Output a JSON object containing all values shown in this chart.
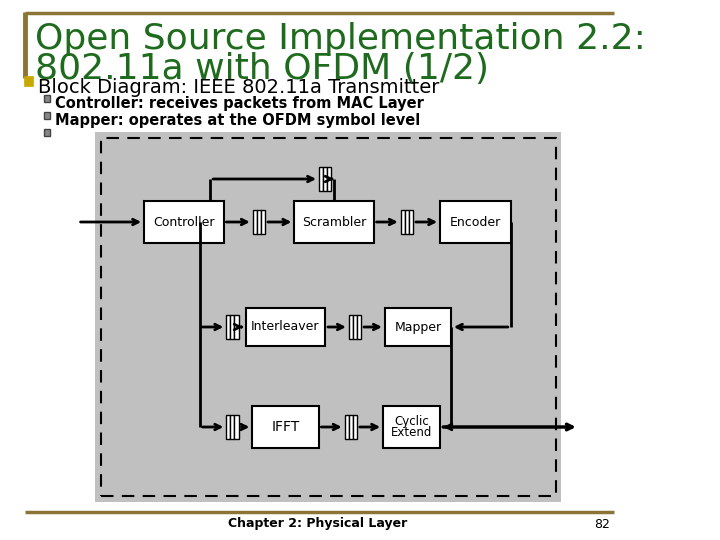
{
  "title_line1": "Open Source Implementation 2.2:",
  "title_line2": "802.11a with OFDM (1/2)",
  "title_color": "#1E6B1E",
  "background_color": "#ffffff",
  "gold_line_color": "#8B7536",
  "bullet_main_color": "#C8A800",
  "sub_bullet_color": "#888888",
  "bullet_main": "Block Diagram: IEEE 802.11a Transmitter",
  "bullet_sub1": "Controller: receives packets from MAC Layer",
  "bullet_sub2": "Mapper: operates at the OFDM symbol level",
  "footer_text": "Chapter 2: Physical Layer",
  "footer_number": "82",
  "diagram_bg": "#C0C0C0",
  "block_bg": "#FFFFFF",
  "block_border": "#000000",
  "arrow_lw": 2.0
}
